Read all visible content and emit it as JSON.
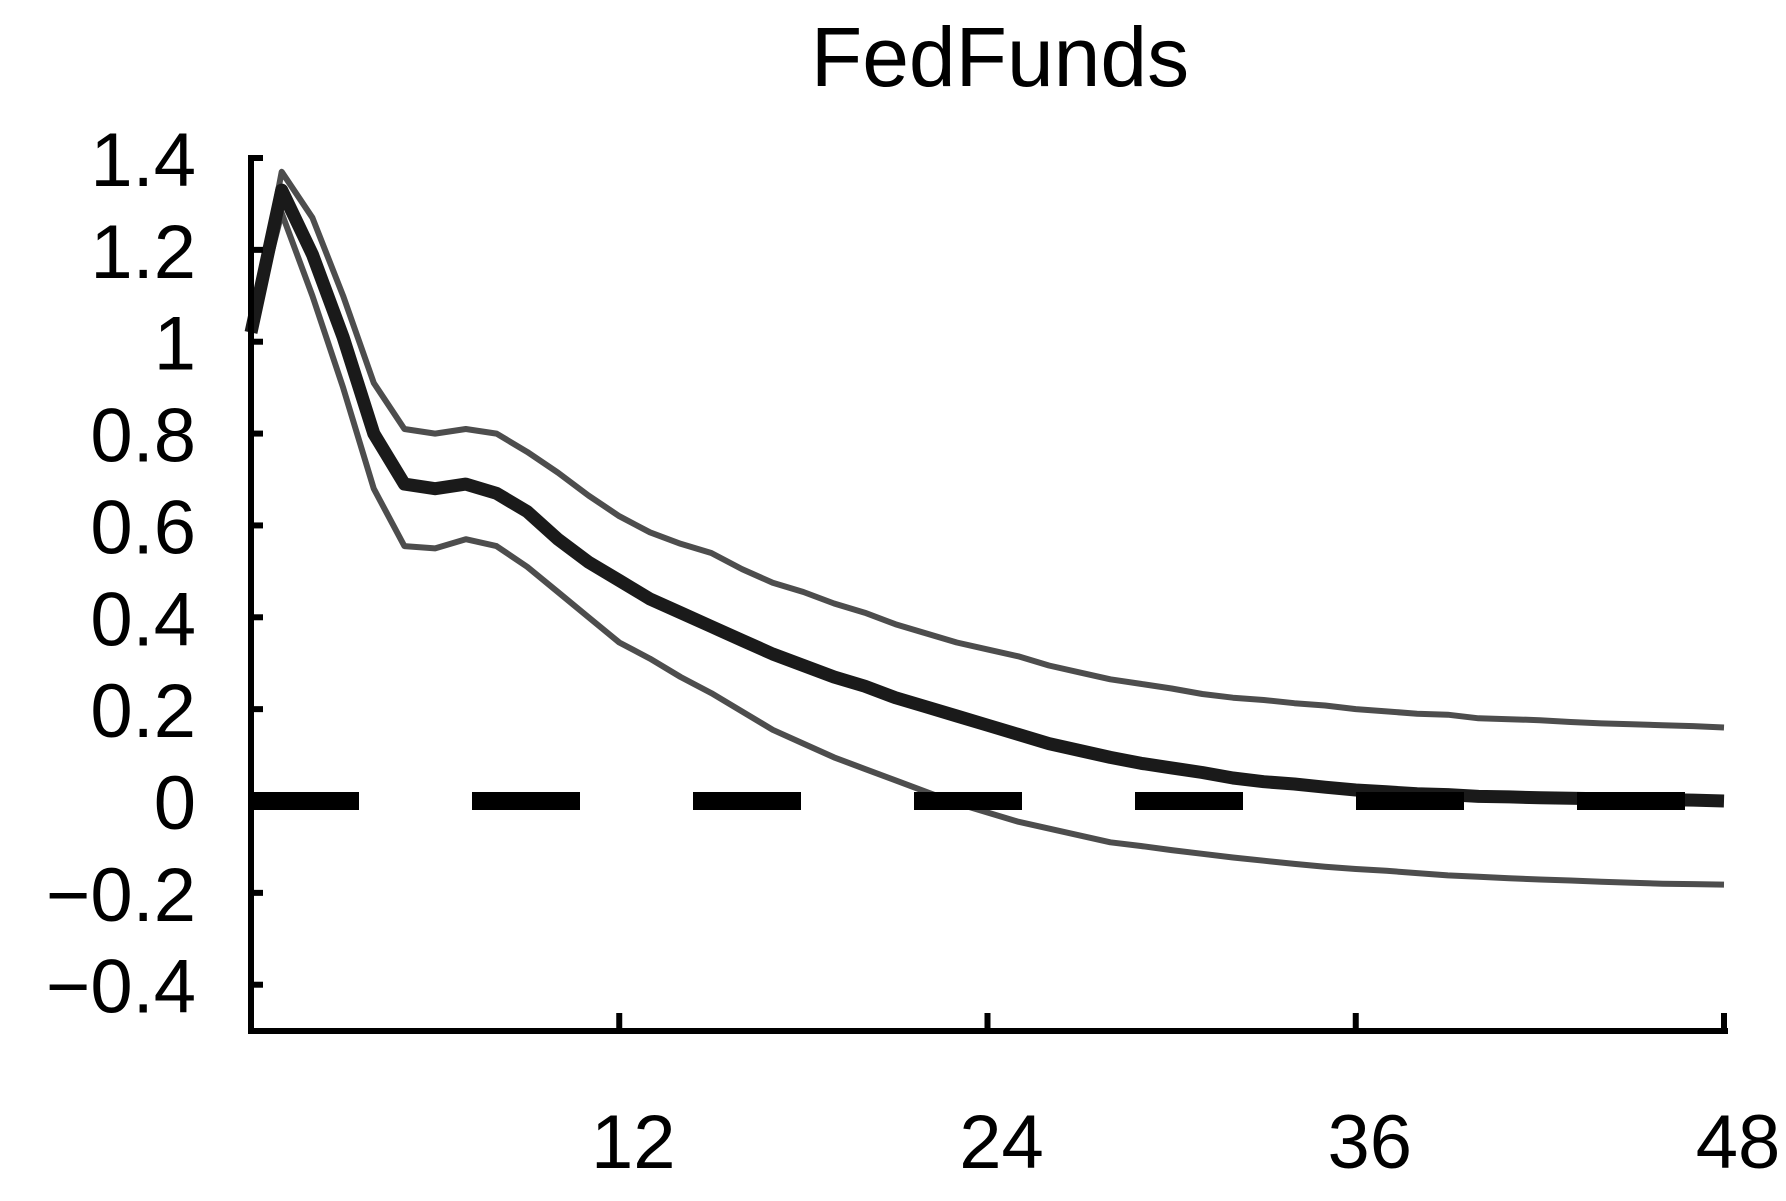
{
  "chart_data": {
    "type": "line",
    "title": "FedFunds",
    "xlabel": "",
    "ylabel": "",
    "xlim": [
      0,
      48
    ],
    "ylim": [
      -0.5,
      1.4
    ],
    "x_ticks": [
      12,
      24,
      36,
      48
    ],
    "x_tick_labels": [
      "12",
      "24",
      "36",
      "48"
    ],
    "y_ticks": [
      1.4,
      1.2,
      1,
      0.8,
      0.6,
      0.4,
      0.2,
      0,
      -0.2,
      -0.4
    ],
    "y_tick_labels": [
      "1.4",
      "1.2",
      "1",
      "0.8",
      "0.6",
      "0.4",
      "0.2",
      "0",
      "−0.2",
      "−0.4"
    ],
    "grid": false,
    "legend": "none",
    "zero_line": {
      "y": 0,
      "style": "dashed",
      "color": "#000000"
    },
    "x": [
      0,
      1,
      2,
      3,
      4,
      5,
      6,
      7,
      8,
      9,
      10,
      11,
      12,
      13,
      14,
      15,
      16,
      17,
      18,
      19,
      20,
      21,
      22,
      23,
      24,
      25,
      26,
      27,
      28,
      29,
      30,
      31,
      32,
      33,
      34,
      35,
      36,
      37,
      38,
      39,
      40,
      41,
      42,
      43,
      44,
      45,
      46,
      47,
      48
    ],
    "series": [
      {
        "role": "median",
        "color": "#1a1a1a",
        "values": [
          1.02,
          1.33,
          1.19,
          1.01,
          0.8,
          0.69,
          0.68,
          0.69,
          0.67,
          0.63,
          0.57,
          0.52,
          0.48,
          0.44,
          0.41,
          0.38,
          0.35,
          0.32,
          0.295,
          0.27,
          0.25,
          0.225,
          0.205,
          0.185,
          0.165,
          0.145,
          0.125,
          0.11,
          0.095,
          0.082,
          0.072,
          0.062,
          0.05,
          0.042,
          0.037,
          0.03,
          0.024,
          0.02,
          0.016,
          0.014,
          0.01,
          0.009,
          0.007,
          0.006,
          0.005,
          0.004,
          0.003,
          0.002,
          0.0
        ]
      },
      {
        "role": "upper-band",
        "color": "#4d4d4d",
        "values": [
          1.02,
          1.37,
          1.27,
          1.1,
          0.91,
          0.81,
          0.8,
          0.81,
          0.8,
          0.76,
          0.715,
          0.665,
          0.62,
          0.585,
          0.56,
          0.54,
          0.505,
          0.475,
          0.455,
          0.43,
          0.41,
          0.385,
          0.365,
          0.345,
          0.33,
          0.315,
          0.295,
          0.28,
          0.265,
          0.255,
          0.245,
          0.233,
          0.225,
          0.22,
          0.213,
          0.208,
          0.2,
          0.195,
          0.19,
          0.188,
          0.18,
          0.178,
          0.176,
          0.172,
          0.169,
          0.167,
          0.165,
          0.163,
          0.16
        ]
      },
      {
        "role": "lower-band",
        "color": "#4d4d4d",
        "values": [
          1.02,
          1.28,
          1.1,
          0.9,
          0.68,
          0.555,
          0.55,
          0.57,
          0.555,
          0.51,
          0.455,
          0.4,
          0.345,
          0.31,
          0.27,
          0.235,
          0.195,
          0.155,
          0.125,
          0.095,
          0.07,
          0.045,
          0.02,
          -0.005,
          -0.025,
          -0.045,
          -0.06,
          -0.075,
          -0.09,
          -0.098,
          -0.107,
          -0.115,
          -0.123,
          -0.13,
          -0.137,
          -0.143,
          -0.148,
          -0.152,
          -0.157,
          -0.162,
          -0.165,
          -0.168,
          -0.171,
          -0.173,
          -0.176,
          -0.178,
          -0.18,
          -0.181,
          -0.182
        ]
      }
    ]
  }
}
